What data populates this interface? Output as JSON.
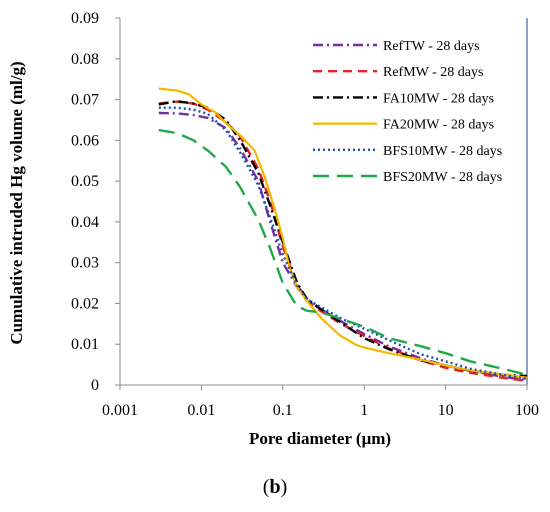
{
  "caption": {
    "open": "(",
    "letter": "b",
    "close": ")"
  },
  "chart_data": {
    "type": "line",
    "xlabel": "Pore diameter  (μm)",
    "ylabel": "Cumulative intruded Hg volume  (ml/g)",
    "xscale": "log",
    "xlim": [
      0.001,
      100
    ],
    "ylim": [
      0,
      0.09
    ],
    "xticks": [
      "0.001",
      "0.01",
      "0.1",
      "1",
      "10",
      "100"
    ],
    "yticks": [
      "0",
      "0.01",
      "0.02",
      "0.03",
      "0.04",
      "0.05",
      "0.06",
      "0.07",
      "0.08",
      "0.09"
    ],
    "grid": false,
    "legend_position": "top-right",
    "series": [
      {
        "name": "RefTW - 28 days",
        "color": "#7030a0",
        "dash": "dash-dot",
        "points": [
          [
            0.003,
            0.0667
          ],
          [
            0.005,
            0.0666
          ],
          [
            0.008,
            0.0662
          ],
          [
            0.012,
            0.0655
          ],
          [
            0.02,
            0.063
          ],
          [
            0.03,
            0.058
          ],
          [
            0.05,
            0.05
          ],
          [
            0.07,
            0.04
          ],
          [
            0.1,
            0.03
          ],
          [
            0.15,
            0.024
          ],
          [
            0.2,
            0.0205
          ],
          [
            0.3,
            0.0185
          ],
          [
            0.5,
            0.0158
          ],
          [
            1,
            0.0125
          ],
          [
            2,
            0.0095
          ],
          [
            5,
            0.0065
          ],
          [
            10,
            0.0048
          ],
          [
            20,
            0.0035
          ],
          [
            50,
            0.002
          ],
          [
            100,
            0.0012
          ]
        ]
      },
      {
        "name": "RefMW - 28 days",
        "color": "#e8202a",
        "dash": "dash",
        "points": [
          [
            0.003,
            0.069
          ],
          [
            0.005,
            0.0695
          ],
          [
            0.008,
            0.069
          ],
          [
            0.012,
            0.0675
          ],
          [
            0.02,
            0.0645
          ],
          [
            0.03,
            0.061
          ],
          [
            0.05,
            0.053
          ],
          [
            0.07,
            0.045
          ],
          [
            0.1,
            0.034
          ],
          [
            0.15,
            0.0245
          ],
          [
            0.2,
            0.0205
          ],
          [
            0.3,
            0.018
          ],
          [
            0.5,
            0.0152
          ],
          [
            1,
            0.012
          ],
          [
            2,
            0.009
          ],
          [
            5,
            0.006
          ],
          [
            10,
            0.0042
          ],
          [
            20,
            0.003
          ],
          [
            50,
            0.0018
          ],
          [
            100,
            0.001
          ]
        ]
      },
      {
        "name": "FA10MW - 28 days",
        "color": "#000000",
        "dash": "dash-dot",
        "points": [
          [
            0.003,
            0.0688
          ],
          [
            0.005,
            0.0696
          ],
          [
            0.008,
            0.069
          ],
          [
            0.012,
            0.068
          ],
          [
            0.02,
            0.065
          ],
          [
            0.03,
            0.06
          ],
          [
            0.05,
            0.052
          ],
          [
            0.07,
            0.044
          ],
          [
            0.1,
            0.035
          ],
          [
            0.15,
            0.025
          ],
          [
            0.2,
            0.021
          ],
          [
            0.3,
            0.0185
          ],
          [
            0.5,
            0.0155
          ],
          [
            1,
            0.0115
          ],
          [
            2,
            0.0088
          ],
          [
            5,
            0.006
          ],
          [
            10,
            0.0048
          ],
          [
            20,
            0.0035
          ],
          [
            50,
            0.0025
          ],
          [
            100,
            0.0022
          ]
        ]
      },
      {
        "name": "FA20MW - 28 days",
        "color": "#f5b800",
        "dash": "solid",
        "points": [
          [
            0.003,
            0.0727
          ],
          [
            0.005,
            0.0722
          ],
          [
            0.007,
            0.0713
          ],
          [
            0.01,
            0.0688
          ],
          [
            0.015,
            0.0668
          ],
          [
            0.02,
            0.0642
          ],
          [
            0.03,
            0.0612
          ],
          [
            0.045,
            0.0575
          ],
          [
            0.06,
            0.051
          ],
          [
            0.08,
            0.043
          ],
          [
            0.1,
            0.036
          ],
          [
            0.12,
            0.029
          ],
          [
            0.15,
            0.024
          ],
          [
            0.2,
            0.0205
          ],
          [
            0.3,
            0.0163
          ],
          [
            0.5,
            0.0122
          ],
          [
            0.8,
            0.0098
          ],
          [
            1,
            0.0092
          ],
          [
            2,
            0.0078
          ],
          [
            5,
            0.0062
          ],
          [
            10,
            0.0048
          ],
          [
            20,
            0.0036
          ],
          [
            50,
            0.0026
          ],
          [
            100,
            0.0018
          ]
        ]
      },
      {
        "name": "BFS10MW - 28 days",
        "color": "#1f4fb4",
        "dash": "dot",
        "points": [
          [
            0.003,
            0.068
          ],
          [
            0.005,
            0.068
          ],
          [
            0.008,
            0.0675
          ],
          [
            0.012,
            0.0665
          ],
          [
            0.02,
            0.0625
          ],
          [
            0.03,
            0.057
          ],
          [
            0.05,
            0.049
          ],
          [
            0.07,
            0.041
          ],
          [
            0.1,
            0.032
          ],
          [
            0.15,
            0.0245
          ],
          [
            0.2,
            0.021
          ],
          [
            0.3,
            0.019
          ],
          [
            0.5,
            0.0165
          ],
          [
            1,
            0.0138
          ],
          [
            2,
            0.011
          ],
          [
            5,
            0.0075
          ],
          [
            10,
            0.0058
          ],
          [
            20,
            0.004
          ],
          [
            50,
            0.0025
          ],
          [
            100,
            0.0015
          ]
        ]
      },
      {
        "name": "BFS20MW - 28 days",
        "color": "#22a84a",
        "dash": "longdash",
        "points": [
          [
            0.003,
            0.0625
          ],
          [
            0.005,
            0.0618
          ],
          [
            0.008,
            0.06
          ],
          [
            0.012,
            0.0575
          ],
          [
            0.02,
            0.0535
          ],
          [
            0.03,
            0.0485
          ],
          [
            0.05,
            0.0405
          ],
          [
            0.07,
            0.0335
          ],
          [
            0.1,
            0.025
          ],
          [
            0.15,
            0.0193
          ],
          [
            0.2,
            0.0182
          ],
          [
            0.3,
            0.0178
          ],
          [
            0.5,
            0.0163
          ],
          [
            1,
            0.0143
          ],
          [
            2,
            0.0115
          ],
          [
            5,
            0.0095
          ],
          [
            10,
            0.0078
          ],
          [
            20,
            0.0058
          ],
          [
            50,
            0.004
          ],
          [
            100,
            0.0025
          ]
        ]
      }
    ]
  }
}
